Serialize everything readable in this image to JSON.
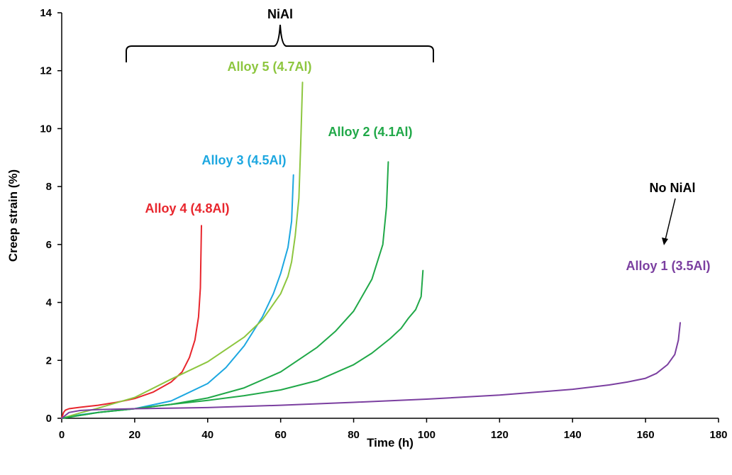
{
  "chart_data": {
    "type": "line",
    "title": "",
    "xlabel": "Time (h)",
    "ylabel": "Creep strain (%)",
    "xlim": [
      0,
      180
    ],
    "ylim": [
      0,
      14
    ],
    "xticks": [
      "0",
      "20",
      "40",
      "60",
      "80",
      "100",
      "120",
      "140",
      "160",
      "180"
    ],
    "yticks": [
      "0",
      "2",
      "4",
      "6",
      "8",
      "10",
      "12",
      "14"
    ],
    "grid": false,
    "legend": "none",
    "series": [
      {
        "name": "Alloy 4 (4.8Al)",
        "color": "#e8262d",
        "x": [
          0,
          0.5,
          1,
          2,
          5,
          10,
          15,
          20,
          25,
          30,
          33,
          35,
          36.5,
          37.5,
          38,
          38.3
        ],
        "y": [
          0,
          0.2,
          0.28,
          0.33,
          0.38,
          0.45,
          0.55,
          0.68,
          0.9,
          1.25,
          1.6,
          2.1,
          2.7,
          3.5,
          4.5,
          6.65
        ]
      },
      {
        "name": "Alloy 3 (4.5Al)",
        "color": "#1ca7e0",
        "x": [
          0,
          5,
          10,
          20,
          30,
          40,
          45,
          50,
          55,
          58,
          60,
          62,
          63,
          63.5
        ],
        "y": [
          0,
          0.12,
          0.2,
          0.33,
          0.6,
          1.2,
          1.75,
          2.5,
          3.5,
          4.3,
          5.0,
          5.9,
          6.8,
          8.4
        ]
      },
      {
        "name": "Alloy 5 (4.7Al)",
        "color": "#8dc63f",
        "x": [
          0,
          5,
          10,
          20,
          30,
          40,
          50,
          55,
          60,
          62,
          63,
          64,
          65,
          65.5,
          66
        ],
        "y": [
          0,
          0.18,
          0.35,
          0.72,
          1.35,
          1.95,
          2.8,
          3.4,
          4.3,
          4.9,
          5.4,
          6.3,
          7.6,
          9.5,
          11.6
        ]
      },
      {
        "name": "Alloy 2 (4.1Al)",
        "color": "#20a848",
        "x": [
          0,
          10,
          20,
          30,
          40,
          50,
          60,
          70,
          75,
          80,
          85,
          88,
          89,
          89.5
        ],
        "y": [
          0,
          0.2,
          0.33,
          0.48,
          0.7,
          1.05,
          1.6,
          2.45,
          3.0,
          3.7,
          4.8,
          6.0,
          7.3,
          8.85
        ]
      },
      {
        "name": "",
        "color": "#20a848",
        "x": [
          0,
          10,
          20,
          30,
          40,
          50,
          60,
          70,
          80,
          85,
          90,
          93,
          95,
          97,
          98.5,
          99
        ],
        "y": [
          0,
          0.2,
          0.33,
          0.48,
          0.62,
          0.78,
          0.98,
          1.3,
          1.85,
          2.25,
          2.75,
          3.1,
          3.45,
          3.75,
          4.2,
          5.1
        ]
      },
      {
        "name": "Alloy 1 (3.5Al)",
        "color": "#7b3fa0",
        "x": [
          0,
          2,
          5,
          10,
          20,
          40,
          60,
          80,
          100,
          120,
          140,
          150,
          155,
          160,
          163,
          166,
          168,
          169,
          169.5
        ],
        "y": [
          0,
          0.2,
          0.27,
          0.3,
          0.33,
          0.37,
          0.45,
          0.55,
          0.66,
          0.8,
          1.0,
          1.15,
          1.25,
          1.38,
          1.55,
          1.85,
          2.2,
          2.7,
          3.3
        ]
      }
    ],
    "annotations": [
      {
        "text": "NiAl",
        "color": "#000000"
      },
      {
        "text": "Alloy 5 (4.7Al)",
        "color": "#8dc63f"
      },
      {
        "text": "Alloy 2 (4.1Al)",
        "color": "#20a848"
      },
      {
        "text": "Alloy 3 (4.5Al)",
        "color": "#1ca7e0"
      },
      {
        "text": "Alloy 4 (4.8Al)",
        "color": "#e8262d"
      },
      {
        "text": "No NiAl",
        "color": "#000000"
      },
      {
        "text": "Alloy 1 (3.5Al)",
        "color": "#7b3fa0"
      }
    ]
  }
}
